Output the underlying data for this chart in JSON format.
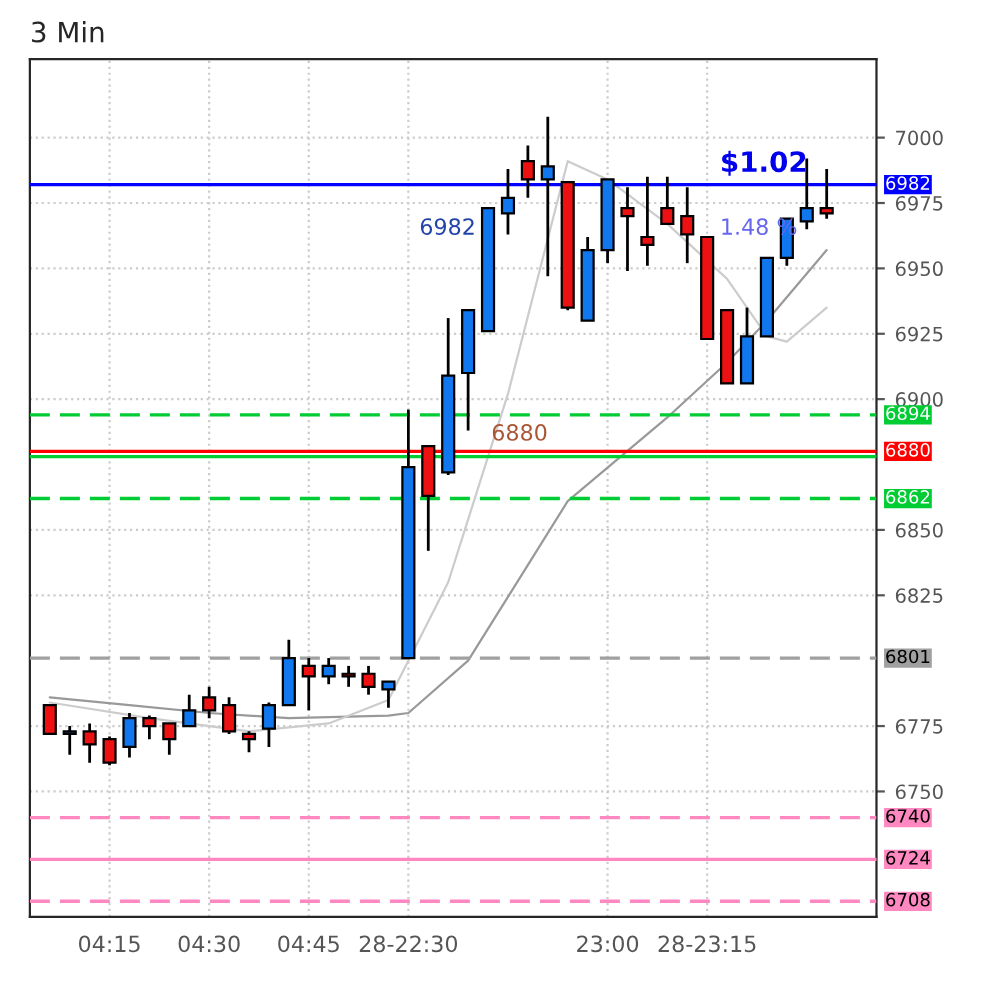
{
  "chart_data": {
    "type": "candlestick",
    "title": "3 Min",
    "categories": [
      null,
      null,
      null,
      "04:15",
      null,
      null,
      null,
      null,
      "04:30",
      null,
      null,
      null,
      null,
      "04:45",
      null,
      null,
      null,
      null,
      "28-22:30",
      null,
      null,
      null,
      null,
      null,
      null,
      null,
      null,
      null,
      "23:00",
      null,
      null,
      null,
      null,
      "28-23:15",
      null,
      null,
      null,
      null,
      null,
      null
    ],
    "ohlc": [
      [
        6783,
        6783,
        6772,
        6772
      ],
      [
        6772,
        6775,
        6764,
        6773
      ],
      [
        6773,
        6776,
        6761,
        6768
      ],
      [
        6770,
        6771,
        6760,
        6761
      ],
      [
        6767,
        6780,
        6763,
        6778
      ],
      [
        6778,
        6779,
        6770,
        6775
      ],
      [
        6776,
        6776,
        6764,
        6770
      ],
      [
        6775,
        6787,
        6775,
        6781
      ],
      [
        6786,
        6790,
        6778,
        6781
      ],
      [
        6783,
        6786,
        6772,
        6773
      ],
      [
        6772,
        6773,
        6765,
        6770
      ],
      [
        6774,
        6784,
        6767,
        6783
      ],
      [
        6783,
        6808,
        6783,
        6801
      ],
      [
        6798,
        6801,
        6781,
        6794
      ],
      [
        6794,
        6801,
        6791,
        6798
      ],
      [
        6795,
        6798,
        6790,
        6794
      ],
      [
        6795,
        6798,
        6787,
        6790
      ],
      [
        6789,
        6792,
        6782,
        6792
      ],
      [
        6801,
        6896,
        6801,
        6874
      ],
      [
        6882,
        6882,
        6842,
        6863
      ],
      [
        6872,
        6931,
        6871,
        6909
      ],
      [
        6910,
        6934,
        6888,
        6934
      ],
      [
        6926,
        6973,
        6926,
        6973
      ],
      [
        6971,
        6988,
        6963,
        6977
      ],
      [
        6991,
        6997,
        6977,
        6984
      ],
      [
        6984,
        7008,
        6947,
        6989
      ],
      [
        6983,
        6983,
        6934,
        6935
      ],
      [
        6930,
        6962,
        6930,
        6957
      ],
      [
        6957,
        6984,
        6952,
        6984
      ],
      [
        6973,
        6981,
        6949,
        6970
      ],
      [
        6962,
        6985,
        6951,
        6959
      ],
      [
        6973,
        6985,
        6967,
        6967
      ],
      [
        6970,
        6981,
        6952,
        6963
      ],
      [
        6962,
        6962,
        6923,
        6923
      ],
      [
        6934,
        6934,
        6906,
        6906
      ],
      [
        6906,
        6935,
        6906,
        6924
      ],
      [
        6924,
        6954,
        6924,
        6954
      ],
      [
        6954,
        6969,
        6951,
        6969
      ],
      [
        6968,
        6992,
        6965,
        6973
      ],
      [
        6973,
        6988,
        6969,
        6971
      ]
    ],
    "colors": [
      "#ee1111",
      "#1177ee",
      "#ee1111",
      "#ee1111",
      "#1177ee",
      "#ee1111",
      "#ee1111",
      "#1177ee",
      "#ee1111",
      "#ee1111",
      "#ee1111",
      "#1177ee",
      "#1177ee",
      "#ee1111",
      "#1177ee",
      "#ee1111",
      "#ee1111",
      "#1177ee",
      "#1177ee",
      "#ee1111",
      "#1177ee",
      "#1177ee",
      "#1177ee",
      "#1177ee",
      "#ee1111",
      "#1177ee",
      "#ee1111",
      "#1177ee",
      "#1177ee",
      "#ee1111",
      "#ee1111",
      "#ee1111",
      "#ee1111",
      "#ee1111",
      "#ee1111",
      "#1177ee",
      "#1177ee",
      "#1177ee",
      "#1177ee",
      "#ee1111"
    ],
    "series": [
      {
        "type": "line",
        "color": "#999999",
        "values": [
          6786,
          null,
          null,
          null,
          6783,
          null,
          null,
          null,
          6780,
          null,
          null,
          null,
          6778,
          null,
          null,
          null,
          null,
          6779,
          6780,
          null,
          null,
          6800,
          null,
          null,
          null,
          null,
          6861,
          null,
          null,
          null,
          null,
          6893,
          null,
          null,
          6914,
          null,
          6930,
          null,
          null,
          6957
        ]
      },
      {
        "type": "line",
        "color": "#cccccc",
        "values": [
          6784,
          null,
          null,
          null,
          null,
          6778,
          null,
          null,
          null,
          null,
          6773,
          null,
          null,
          null,
          6776,
          null,
          null,
          6785,
          6800,
          null,
          6830,
          null,
          null,
          6902,
          null,
          null,
          6991,
          null,
          6984,
          null,
          null,
          6967,
          null,
          null,
          6946,
          null,
          6924,
          6922,
          null,
          6935
        ]
      }
    ],
    "ylim": [
      6702,
      7030
    ],
    "yticks": [
      6750,
      6775,
      6825,
      6850,
      6900,
      6925,
      6950,
      6975,
      7000
    ],
    "ref_lines": [
      {
        "axis": "y",
        "value": 6982,
        "label": "6982",
        "color": "#0000ff",
        "line_style": "solid"
      },
      {
        "axis": "y",
        "value": 6894,
        "label": "6894",
        "color": "#00cc33",
        "line_style": "dashed"
      },
      {
        "axis": "y",
        "value": 6878,
        "color": "#00cc33",
        "line_style": "solid"
      },
      {
        "axis": "y",
        "value": 6880,
        "label": "6880",
        "color": "#ff0000",
        "line_style": "solid"
      },
      {
        "axis": "y",
        "value": 6862,
        "label": "6862",
        "color": "#00cc33",
        "line_style": "dashed"
      },
      {
        "axis": "y",
        "value": 6801,
        "label": "6801",
        "color": "#a0a0a0",
        "line_style": "dashed"
      },
      {
        "axis": "y",
        "value": 6740,
        "label": "6740",
        "color": "#ff88c0",
        "line_style": "dashed"
      },
      {
        "axis": "y",
        "value": 6724,
        "label": "6724",
        "color": "#ff88c0",
        "line_style": "solid"
      },
      {
        "axis": "y",
        "value": 6708,
        "label": "6708",
        "color": "#ff88c0",
        "line_style": "dashed"
      }
    ],
    "annotations": [
      "$1.02",
      "1.48 %",
      "6982",
      "6880"
    ],
    "grid": true
  }
}
